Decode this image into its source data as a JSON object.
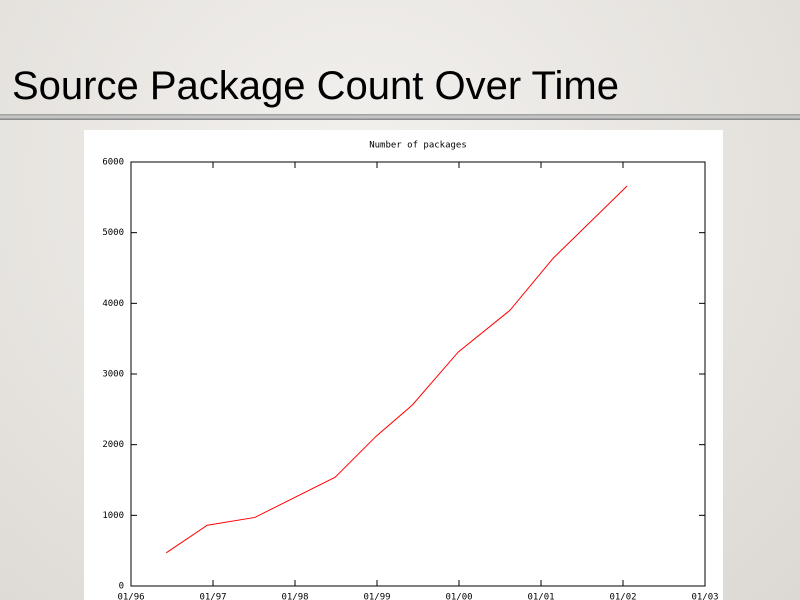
{
  "slide_title": "Source Package Count Over Time",
  "chart_data": {
    "type": "line",
    "title": "Number of packages",
    "x": [
      1996.43,
      1996.93,
      1997.51,
      1998.49,
      1998.99,
      1999.43,
      1999.99,
      2000.62,
      2001.15,
      2002.05
    ],
    "series": [
      {
        "name": "Number of packages",
        "color": "#ff0000",
        "values": [
          470,
          860,
          970,
          1540,
          2120,
          2560,
          3310,
          3900,
          4640,
          5660
        ]
      }
    ],
    "xlim": [
      1996,
      2003
    ],
    "xticks": [
      {
        "value": 1996,
        "label": "01/96"
      },
      {
        "value": 1997,
        "label": "01/97"
      },
      {
        "value": 1998,
        "label": "01/98"
      },
      {
        "value": 1999,
        "label": "01/99"
      },
      {
        "value": 2000,
        "label": "01/00"
      },
      {
        "value": 2001,
        "label": "01/01"
      },
      {
        "value": 2002,
        "label": "01/02"
      },
      {
        "value": 2003,
        "label": "01/03"
      }
    ],
    "ylim": [
      0,
      6000
    ],
    "yticks": [
      0,
      1000,
      2000,
      3000,
      4000,
      5000,
      6000
    ]
  }
}
